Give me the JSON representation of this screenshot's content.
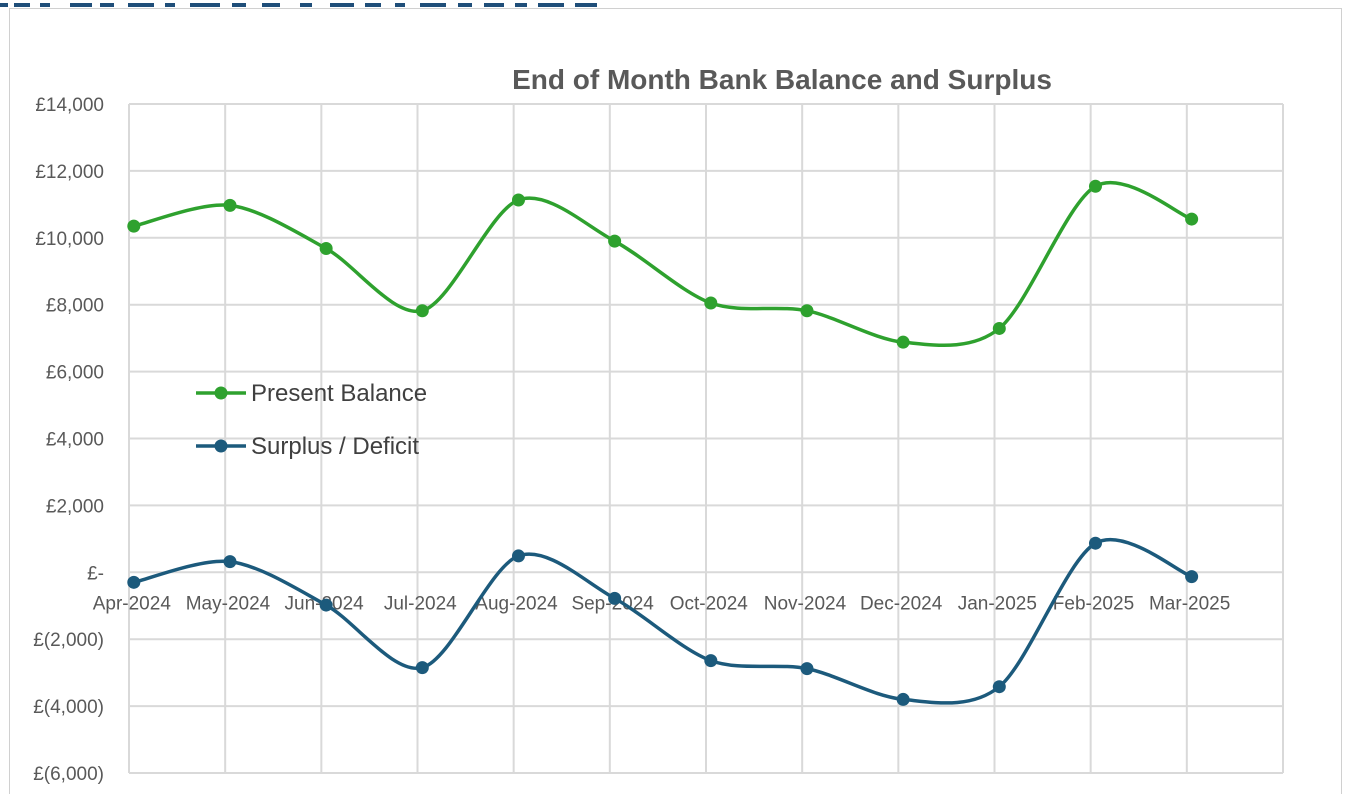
{
  "chart_data": {
    "type": "line",
    "title": "End of Month Bank Balance and Surplus",
    "categories": [
      "Apr-2024",
      "May-2024",
      "Jun-2024",
      "Jul-2024",
      "Aug-2024",
      "Sep-2024",
      "Oct-2024",
      "Nov-2024",
      "Dec-2024",
      "Jan-2025",
      "Feb-2025",
      "Mar-2025"
    ],
    "y_ticks": [
      "£14,000",
      "£12,000",
      "£10,000",
      "£8,000",
      "£6,000",
      "£4,000",
      "£2,000",
      "£-",
      "£(2,000)",
      "£(4,000)",
      "£(6,000)"
    ],
    "ylim": [
      -6000,
      14000
    ],
    "grid": true,
    "smooth": true,
    "legend_position": "left-middle",
    "series": [
      {
        "name": "Present Balance",
        "color": "#2ea12e",
        "values": [
          10350,
          10970,
          9680,
          7820,
          11130,
          9900,
          8050,
          7820,
          6880,
          7290,
          11540,
          10560
        ]
      },
      {
        "name": "Surplus / Deficit",
        "color": "#1c5a7c",
        "values": [
          -300,
          320,
          -980,
          -2850,
          490,
          -780,
          -2640,
          -2880,
          -3800,
          -3420,
          870,
          -130
        ]
      }
    ]
  }
}
